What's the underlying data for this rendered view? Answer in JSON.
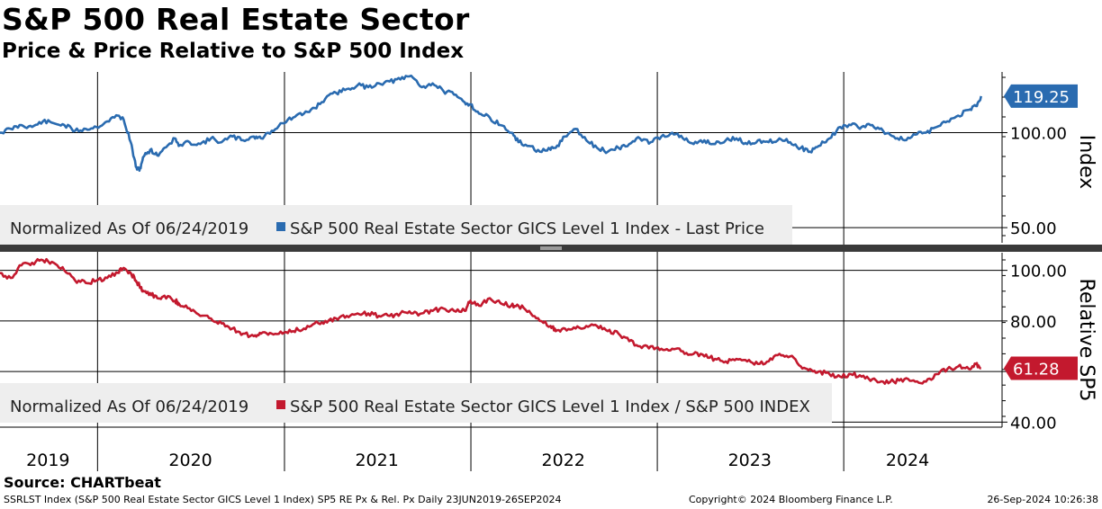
{
  "title": "S&P 500 Real Estate Sector",
  "subtitle": "Price & Price Relative to S&P 500 Index",
  "source": "Source: CHARTbeat",
  "footer": {
    "left": "SSRLST Index (S&P 500 Real Estate Sector GICS Level 1 Index) SP5 RE Px & Rel. Px  Daily 23JUN2019-26SEP2024",
    "middle": "Copyright© 2024 Bloomberg Finance L.P.",
    "right": "26-Sep-2024 10:26:38"
  },
  "chart_data": [
    {
      "type": "line",
      "panel": "top",
      "ylabel": "Index",
      "yticks": [
        50,
        100
      ],
      "ytick_labels": [
        "50.00",
        "100.00"
      ],
      "ylim": [
        42,
        132
      ],
      "legend_note": "Normalized As Of 06/24/2019",
      "legend_label": "S&P 500 Real Estate Sector GICS Level 1 Index - Last Price",
      "color": "#2a6bb0",
      "last_value_label": "119.25",
      "x_labels": [
        "2019",
        "2020",
        "2021",
        "2022",
        "2023",
        "2024"
      ],
      "x": [
        "2019-06-24",
        "2019-07-15",
        "2019-08-05",
        "2019-08-26",
        "2019-09-16",
        "2019-10-07",
        "2019-10-28",
        "2019-11-18",
        "2019-12-09",
        "2019-12-30",
        "2020-01-20",
        "2020-02-10",
        "2020-02-21",
        "2020-03-06",
        "2020-03-16",
        "2020-03-23",
        "2020-03-30",
        "2020-04-13",
        "2020-04-27",
        "2020-05-11",
        "2020-06-01",
        "2020-06-08",
        "2020-06-29",
        "2020-07-20",
        "2020-08-10",
        "2020-08-31",
        "2020-09-21",
        "2020-10-12",
        "2020-11-02",
        "2020-11-16",
        "2020-12-07",
        "2020-12-28",
        "2021-01-18",
        "2021-02-08",
        "2021-03-01",
        "2021-03-22",
        "2021-04-12",
        "2021-05-03",
        "2021-05-24",
        "2021-06-14",
        "2021-07-05",
        "2021-07-26",
        "2021-08-16",
        "2021-09-06",
        "2021-09-27",
        "2021-10-18",
        "2021-11-08",
        "2021-11-29",
        "2021-12-20",
        "2021-12-31",
        "2022-01-17",
        "2022-02-07",
        "2022-02-28",
        "2022-03-21",
        "2022-04-04",
        "2022-04-25",
        "2022-05-16",
        "2022-06-06",
        "2022-06-16",
        "2022-07-04",
        "2022-07-25",
        "2022-08-15",
        "2022-09-05",
        "2022-09-26",
        "2022-10-17",
        "2022-11-07",
        "2022-11-28",
        "2022-12-19",
        "2023-01-09",
        "2023-01-30",
        "2023-02-20",
        "2023-03-13",
        "2023-04-03",
        "2023-04-24",
        "2023-05-15",
        "2023-06-05",
        "2023-06-26",
        "2023-07-17",
        "2023-08-07",
        "2023-08-28",
        "2023-09-18",
        "2023-10-09",
        "2023-10-27",
        "2023-11-13",
        "2023-12-04",
        "2023-12-25",
        "2024-01-15",
        "2024-02-05",
        "2024-02-26",
        "2024-03-18",
        "2024-04-08",
        "2024-04-29",
        "2024-05-20",
        "2024-06-10",
        "2024-07-01",
        "2024-07-22",
        "2024-08-12",
        "2024-09-02",
        "2024-09-16",
        "2024-09-26"
      ],
      "values": [
        100,
        102,
        104,
        103,
        106,
        105,
        104,
        101,
        102,
        103,
        106,
        109,
        107,
        95,
        82,
        80,
        87,
        91,
        88,
        92,
        97,
        93,
        95,
        94,
        97,
        95,
        98,
        96,
        98,
        97,
        101,
        105,
        108,
        110,
        113,
        118,
        121,
        123,
        125,
        124,
        126,
        127,
        128,
        130,
        124,
        126,
        122,
        120,
        116,
        115,
        110,
        108,
        104,
        100,
        95,
        93,
        90,
        91,
        92,
        98,
        102,
        96,
        92,
        90,
        92,
        94,
        97,
        95,
        98,
        100,
        97,
        94,
        96,
        94,
        96,
        97,
        94,
        96,
        95,
        97,
        95,
        92,
        90,
        93,
        97,
        103,
        104,
        103,
        104,
        101,
        98,
        96,
        99,
        100,
        103,
        106,
        109,
        112,
        114,
        119.25
      ]
    },
    {
      "type": "line",
      "panel": "bottom",
      "ylabel": "Relative SP5",
      "yticks": [
        40,
        60,
        80,
        100
      ],
      "ytick_labels": [
        "40.00",
        "",
        "80.00",
        "100.00"
      ],
      "ylim": [
        38,
        107
      ],
      "legend_note": "Normalized As Of 06/24/2019",
      "legend_label": "S&P 500 Real Estate Sector GICS Level 1 Index / S&P 500 INDEX",
      "color": "#c3192e",
      "last_value_label": "61.28",
      "x": [
        "2019-06-24",
        "2019-07-15",
        "2019-08-05",
        "2019-08-26",
        "2019-09-16",
        "2019-10-07",
        "2019-10-28",
        "2019-11-18",
        "2019-12-09",
        "2019-12-30",
        "2020-01-20",
        "2020-02-10",
        "2020-02-21",
        "2020-03-06",
        "2020-03-16",
        "2020-03-23",
        "2020-03-30",
        "2020-04-13",
        "2020-04-27",
        "2020-05-11",
        "2020-06-01",
        "2020-06-08",
        "2020-06-29",
        "2020-07-20",
        "2020-08-10",
        "2020-08-31",
        "2020-09-21",
        "2020-10-12",
        "2020-11-02",
        "2020-11-16",
        "2020-12-07",
        "2020-12-28",
        "2021-01-18",
        "2021-02-08",
        "2021-03-01",
        "2021-03-22",
        "2021-04-12",
        "2021-05-03",
        "2021-05-24",
        "2021-06-14",
        "2021-07-05",
        "2021-07-26",
        "2021-08-16",
        "2021-09-06",
        "2021-09-27",
        "2021-10-18",
        "2021-11-08",
        "2021-11-29",
        "2021-12-20",
        "2021-12-31",
        "2022-01-17",
        "2022-02-07",
        "2022-02-28",
        "2022-03-21",
        "2022-04-04",
        "2022-04-25",
        "2022-05-16",
        "2022-06-06",
        "2022-06-16",
        "2022-07-04",
        "2022-07-25",
        "2022-08-15",
        "2022-09-05",
        "2022-09-26",
        "2022-10-17",
        "2022-11-07",
        "2022-11-28",
        "2022-12-19",
        "2023-01-09",
        "2023-01-30",
        "2023-02-20",
        "2023-03-13",
        "2023-04-03",
        "2023-04-24",
        "2023-05-15",
        "2023-06-05",
        "2023-06-26",
        "2023-07-17",
        "2023-08-07",
        "2023-08-28",
        "2023-09-18",
        "2023-10-09",
        "2023-10-27",
        "2023-11-13",
        "2023-12-04",
        "2023-12-25",
        "2024-01-15",
        "2024-02-05",
        "2024-02-26",
        "2024-03-18",
        "2024-04-08",
        "2024-04-29",
        "2024-05-20",
        "2024-06-10",
        "2024-07-01",
        "2024-07-22",
        "2024-08-12",
        "2024-09-02",
        "2024-09-16",
        "2024-09-26"
      ],
      "values": [
        99,
        97,
        102,
        103,
        104,
        103,
        100,
        96,
        95,
        96,
        97,
        99,
        101,
        99,
        96,
        94,
        92,
        91,
        89,
        90,
        88,
        87,
        85,
        82,
        81,
        79,
        77,
        75,
        74,
        75,
        75,
        75,
        76,
        77,
        79,
        80,
        81,
        82,
        83,
        83,
        82,
        82,
        83,
        83,
        83,
        84,
        85,
        84,
        84,
        88,
        86,
        89,
        87,
        86,
        86,
        84,
        80,
        78,
        76,
        77,
        77,
        78,
        78,
        76,
        75,
        72,
        70,
        70,
        69,
        69,
        68,
        67,
        66,
        65,
        64,
        65,
        64,
        63,
        64,
        67,
        66,
        62,
        61,
        60,
        59,
        58,
        59,
        58,
        57,
        56,
        56,
        57,
        56,
        56,
        59,
        61,
        62,
        61,
        63,
        61.28
      ]
    }
  ]
}
